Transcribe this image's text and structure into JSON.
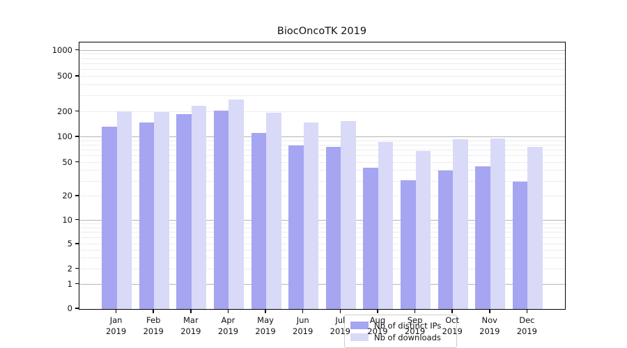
{
  "chart_data": {
    "type": "bar",
    "title": "BiocOncoTK 2019",
    "categories": [
      "Jan 2019",
      "Feb 2019",
      "Mar 2019",
      "Apr 2019",
      "May 2019",
      "Jun 2019",
      "Jul 2019",
      "Aug 2019",
      "Sep 2019",
      "Oct 2019",
      "Nov 2019",
      "Dec 2019"
    ],
    "series": [
      {
        "name": "Nb of distinct IPs",
        "color": "#a5a5f2",
        "values": [
          132,
          149,
          186,
          206,
          112,
          79,
          77,
          43,
          31,
          40,
          45,
          30
        ]
      },
      {
        "name": "Nb of downloads",
        "color": "#d9d9f8",
        "values": [
          201,
          199,
          233,
          275,
          193,
          149,
          154,
          88,
          68,
          94,
          96,
          76
        ]
      }
    ],
    "xlabel": "",
    "ylabel": "",
    "yscale": "symlog",
    "y_ticks": [
      0,
      1,
      2,
      5,
      10,
      20,
      50,
      100,
      200,
      500,
      1000
    ],
    "ylim": [
      0,
      1300
    ],
    "grid": true,
    "legend_position": "lower center"
  },
  "legend": {
    "items": [
      {
        "label": "Nb of distinct IPs",
        "color": "#a5a5f2"
      },
      {
        "label": "Nb of downloads",
        "color": "#d9d9f8"
      }
    ]
  }
}
